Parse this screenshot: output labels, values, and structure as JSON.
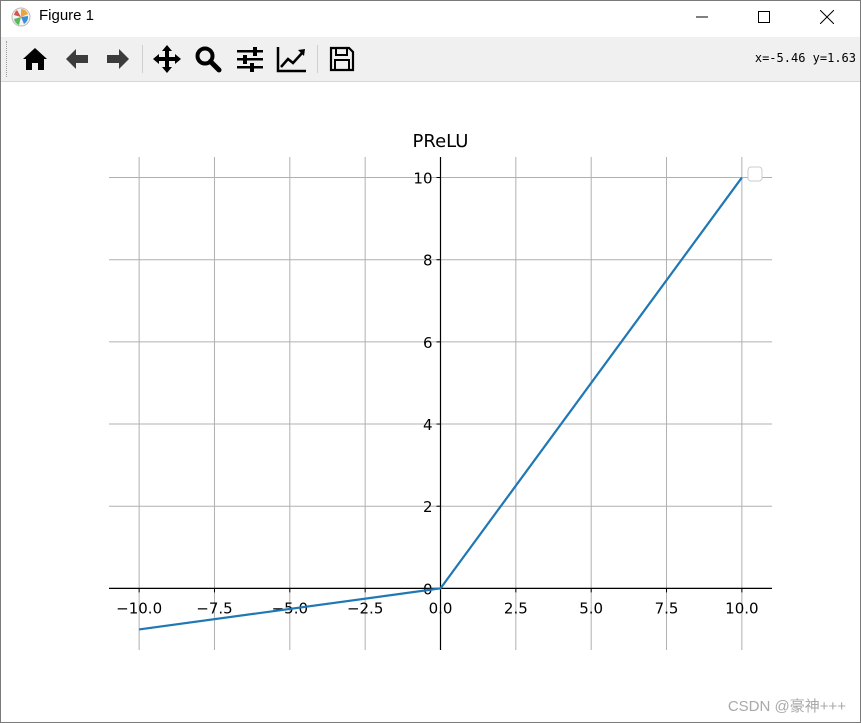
{
  "window": {
    "title": "Figure 1",
    "icons": {
      "app": "matplotlib-icon",
      "minimize": "minimize-icon",
      "maximize": "maximize-icon",
      "close": "close-icon"
    }
  },
  "toolbar": {
    "buttons": [
      "home-icon",
      "back-arrow-icon",
      "forward-arrow-icon",
      "pan-icon",
      "zoom-icon",
      "subplots-icon",
      "edit-axis-icon",
      "save-icon"
    ],
    "coords": "x=-5.46  y=1.63"
  },
  "chart_data": {
    "type": "line",
    "title": "PReLU",
    "xlabel": "",
    "ylabel": "",
    "xlim": [
      -11.0,
      11.0
    ],
    "ylim": [
      -1.5,
      10.5
    ],
    "xticks": [
      -10.0,
      -7.5,
      -5.0,
      -2.5,
      0.0,
      2.5,
      5.0,
      7.5,
      10.0
    ],
    "xtick_labels": [
      "−10.0",
      "−7.5",
      "−5.0",
      "−2.5",
      "0.0",
      "2.5",
      "5.0",
      "7.5",
      "10.0"
    ],
    "yticks": [
      0,
      2,
      4,
      6,
      8,
      10
    ],
    "ytick_labels": [
      "0",
      "2",
      "4",
      "6",
      "8",
      "10"
    ],
    "grid": true,
    "spines": "centered at origin",
    "legend": "top-right (empty)",
    "color": "#1f77b4",
    "series": [
      {
        "x": [
          -10,
          0,
          10
        ],
        "y": [
          -1,
          0,
          10
        ]
      }
    ]
  },
  "watermark": "CSDN @豪神+++"
}
